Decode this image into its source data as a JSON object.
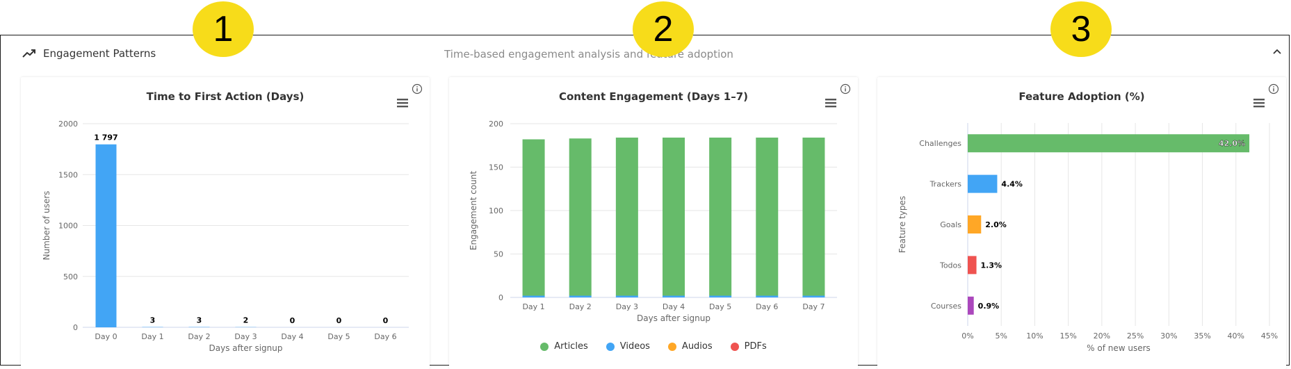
{
  "panel": {
    "title": "Engagement Patterns",
    "subtitle": "Time-based engagement analysis and feature adoption",
    "trend_icon": "trending-up-icon",
    "collapse_icon": "chevron-up-icon"
  },
  "badges": [
    "1",
    "2",
    "3"
  ],
  "colors": {
    "blue": "#42a5f5",
    "green": "#66bb6a",
    "orange": "#ffa726",
    "red": "#ef5350",
    "purple": "#ab47bc",
    "badge": "#f7dc1a"
  },
  "chart_data": [
    {
      "type": "bar",
      "title": "Time to First Action (Days)",
      "xlabel": "Days after signup",
      "ylabel": "Number of users",
      "categories": [
        "Day 0",
        "Day 1",
        "Day 2",
        "Day 3",
        "Day 4",
        "Day 5",
        "Day 6"
      ],
      "values": [
        1797,
        3,
        3,
        2,
        0,
        0,
        0
      ],
      "data_labels": [
        "1 797",
        "3",
        "3",
        "2",
        "0",
        "0",
        "0"
      ],
      "ylim": [
        0,
        2000
      ],
      "yticks": [
        "0",
        "500",
        "1000",
        "1500",
        "2000"
      ],
      "grid": true
    },
    {
      "type": "bar",
      "stacked": true,
      "title": "Content Engagement (Days 1–7)",
      "xlabel": "Days after signup",
      "ylabel": "Engagement count",
      "categories": [
        "Day 1",
        "Day 2",
        "Day 3",
        "Day 4",
        "Day 5",
        "Day 6",
        "Day 7"
      ],
      "series": [
        {
          "name": "Articles",
          "values": [
            180,
            181,
            182,
            182,
            182,
            182,
            182
          ]
        },
        {
          "name": "Videos",
          "values": [
            2,
            2,
            2,
            2,
            2,
            2,
            2
          ]
        },
        {
          "name": "Audios",
          "values": [
            0,
            0,
            0,
            0,
            0,
            0,
            0
          ]
        },
        {
          "name": "PDFs",
          "values": [
            0,
            0,
            0,
            0,
            0,
            0,
            0
          ]
        }
      ],
      "ylim": [
        0,
        200
      ],
      "yticks": [
        "0",
        "50",
        "100",
        "150",
        "200"
      ],
      "legend": "bottom",
      "grid": true
    },
    {
      "type": "bar",
      "orientation": "horizontal",
      "title": "Feature Adoption (%)",
      "xlabel": "% of new users",
      "ylabel": "Feature types",
      "categories": [
        "Challenges",
        "Trackers",
        "Goals",
        "Todos",
        "Courses"
      ],
      "values": [
        42.0,
        4.4,
        2.0,
        1.3,
        0.9
      ],
      "data_labels": [
        "42.0%",
        "4.4%",
        "2.0%",
        "1.3%",
        "0.9%"
      ],
      "xlim": [
        0,
        45
      ],
      "xticks": [
        "0%",
        "5%",
        "10%",
        "15%",
        "20%",
        "25%",
        "30%",
        "35%",
        "40%",
        "45%"
      ],
      "grid": true
    }
  ]
}
